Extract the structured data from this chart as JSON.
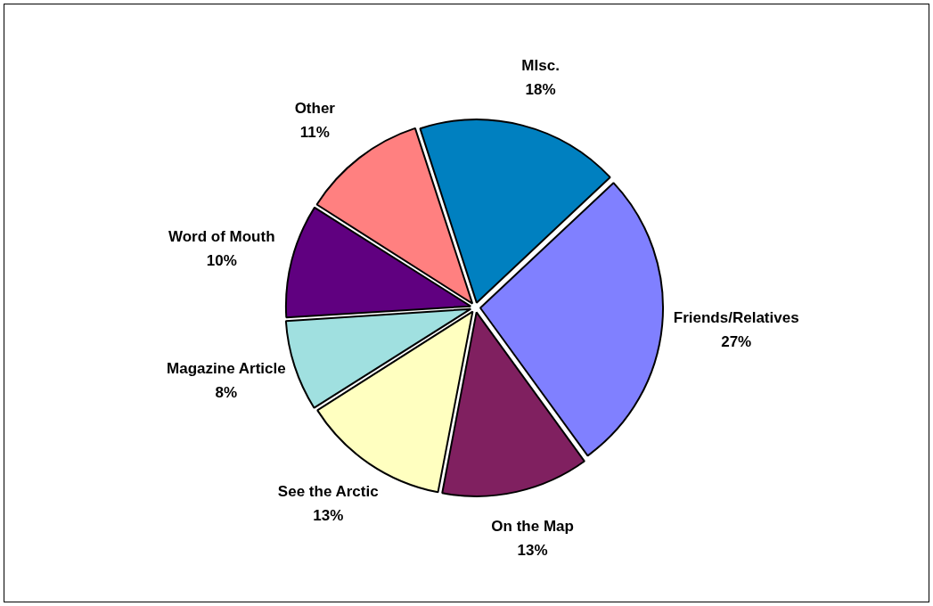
{
  "chart_data": {
    "type": "pie",
    "categories": [
      "MIsc.",
      "Friends/Relatives",
      "On the Map",
      "See the Arctic",
      "Magazine Article",
      "Word of Mouth",
      "Other"
    ],
    "values": [
      18,
      27,
      13,
      13,
      8,
      10,
      11
    ],
    "value_labels": [
      "18%",
      "27%",
      "13%",
      "13%",
      "8%",
      "10%",
      "11%"
    ],
    "colors": [
      "#0080c0",
      "#8080ff",
      "#802060",
      "#ffffc0",
      "#a0e0e0",
      "#600080",
      "#ff8080"
    ],
    "legend": false
  }
}
